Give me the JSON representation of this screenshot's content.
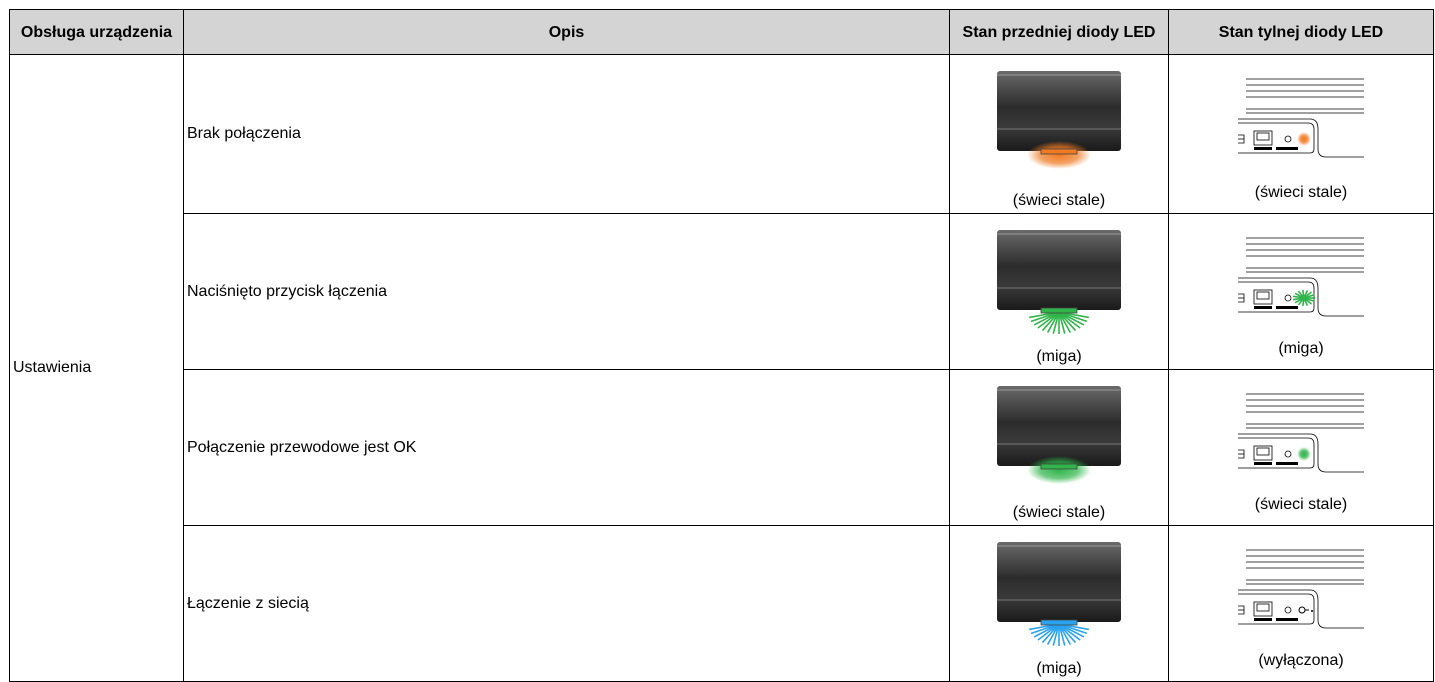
{
  "header": {
    "columns": [
      "Obsługa urządzenia",
      "Opis",
      "Stan przedniej diody LED",
      "Stan tylnej diody LED"
    ]
  },
  "table": {
    "group": "Ustawienia",
    "rows": [
      {
        "description": "Brak połączenia",
        "front_state": "(świeci stale)",
        "rear_state": "(świeci stale)"
      },
      {
        "description": "Naciśnięto przycisk łączenia",
        "front_state": "(miga)",
        "rear_state": "(miga)"
      },
      {
        "description": "Połączenie przewodowe jest OK",
        "front_state": "(świeci stale)",
        "rear_state": "(świeci stale)"
      },
      {
        "description": "Łączenie z siecią",
        "front_state": "(miga)",
        "rear_state": "(wyłączona)"
      }
    ]
  }
}
